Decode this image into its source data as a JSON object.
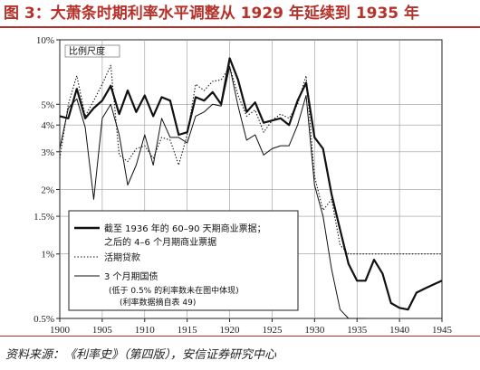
{
  "title": "图 3：大萧条时期利率水平调整从 1929 年延续到 1935 年",
  "source": "资料来源：《利率史》（第四版），安信证券研究中心",
  "chart_data": {
    "type": "line",
    "scale_label": "比例尺度",
    "yscale": "log",
    "ylim": [
      0.5,
      10
    ],
    "xlim": [
      1900,
      1945
    ],
    "y_ticks": [
      {
        "value": 10,
        "label": "10%"
      },
      {
        "value": 5,
        "label": "5%"
      },
      {
        "value": 4,
        "label": "4%"
      },
      {
        "value": 3,
        "label": "3%"
      },
      {
        "value": 2,
        "label": "2%"
      },
      {
        "value": 1.5,
        "label": "1.5%"
      },
      {
        "value": 1,
        "label": "1%"
      },
      {
        "value": 0.5,
        "label": "0.5%"
      }
    ],
    "x_ticks": [
      1900,
      1905,
      1910,
      1915,
      1920,
      1925,
      1930,
      1935,
      1940,
      1945
    ],
    "legend": {
      "series1_line1": "截至 1936 年的 60–90 天期商业票据；",
      "series1_line2": "之后的 4–6 个月期商业票据",
      "series2": "活期贷款",
      "series3": "3 个月期国债",
      "note1": "(低于 0.5% 的利率数未在图中体现)",
      "note2": "(利率数据摘自表 49)"
    },
    "series": [
      {
        "style": "solid-thick",
        "x": [
          1900,
          1901,
          1902,
          1903,
          1904,
          1905,
          1906,
          1907,
          1908,
          1909,
          1910,
          1911,
          1912,
          1913,
          1914,
          1915,
          1916,
          1917,
          1918,
          1919,
          1920,
          1921,
          1922,
          1923,
          1924,
          1925,
          1926,
          1927,
          1928,
          1929,
          1930,
          1931,
          1932,
          1933,
          1934,
          1935,
          1936,
          1937,
          1938,
          1939,
          1940,
          1941,
          1942,
          1943,
          1944,
          1945
        ],
        "values": [
          4.4,
          4.3,
          5.9,
          4.3,
          4.8,
          5.2,
          6.1,
          4.5,
          5.8,
          4.6,
          5.5,
          4.4,
          5.4,
          5.2,
          3.6,
          3.7,
          5.4,
          5.2,
          5.7,
          5.0,
          8.2,
          6.5,
          4.6,
          5.1,
          4.1,
          4.2,
          4.3,
          4.0,
          5.2,
          6.3,
          3.5,
          3.1,
          1.9,
          1.3,
          0.9,
          0.75,
          0.75,
          0.94,
          0.81,
          0.59,
          0.56,
          0.55,
          0.66,
          0.69,
          0.72,
          0.75
        ]
      },
      {
        "style": "dotted",
        "x": [
          1900,
          1901,
          1902,
          1903,
          1904,
          1905,
          1906,
          1907,
          1908,
          1909,
          1910,
          1911,
          1912,
          1913,
          1914,
          1915,
          1916,
          1917,
          1918,
          1919,
          1920,
          1921,
          1922,
          1923,
          1924,
          1925,
          1926,
          1927,
          1928,
          1929,
          1930,
          1931,
          1932,
          1933,
          1934,
          1935,
          1936,
          1937,
          1938,
          1939,
          1940,
          1941,
          1942,
          1943,
          1944,
          1945
        ],
        "values": [
          2.8,
          5.0,
          6.8,
          4.4,
          5.2,
          6.2,
          7.6,
          2.9,
          2.7,
          3.1,
          3.2,
          2.8,
          3.5,
          3.4,
          2.6,
          3.6,
          6.2,
          5.8,
          6.4,
          6.5,
          7.5,
          5.5,
          4.4,
          4.7,
          3.7,
          4.2,
          4.5,
          4.3,
          5.0,
          6.8,
          2.3,
          1.6,
          1.8,
          1.1,
          1.0,
          1.0,
          1.0,
          1.0,
          1.0,
          1.0,
          1.0,
          1.0,
          1.0,
          1.0,
          1.0,
          1.0
        ]
      },
      {
        "style": "solid-thin",
        "x": [
          1900,
          1901,
          1902,
          1903,
          1904,
          1905,
          1906,
          1907,
          1908,
          1909,
          1910,
          1911,
          1912,
          1913,
          1914,
          1915,
          1916,
          1917,
          1918,
          1919,
          1920,
          1921,
          1922,
          1923,
          1924,
          1925,
          1926,
          1927,
          1928,
          1929,
          1930,
          1931,
          1932,
          1933,
          1934,
          1935,
          1936
        ],
        "values": [
          3.1,
          4.8,
          5.3,
          3.9,
          1.8,
          4.3,
          5.0,
          3.6,
          2.1,
          2.6,
          3.6,
          2.6,
          4.3,
          3.5,
          3.5,
          3.3,
          4.4,
          4.6,
          5.0,
          4.9,
          7.5,
          4.9,
          3.4,
          3.6,
          2.9,
          3.1,
          3.2,
          3.2,
          4.0,
          5.5,
          2.1,
          1.5,
          0.85,
          0.55,
          0.5,
          0.5,
          0.5
        ]
      }
    ]
  }
}
